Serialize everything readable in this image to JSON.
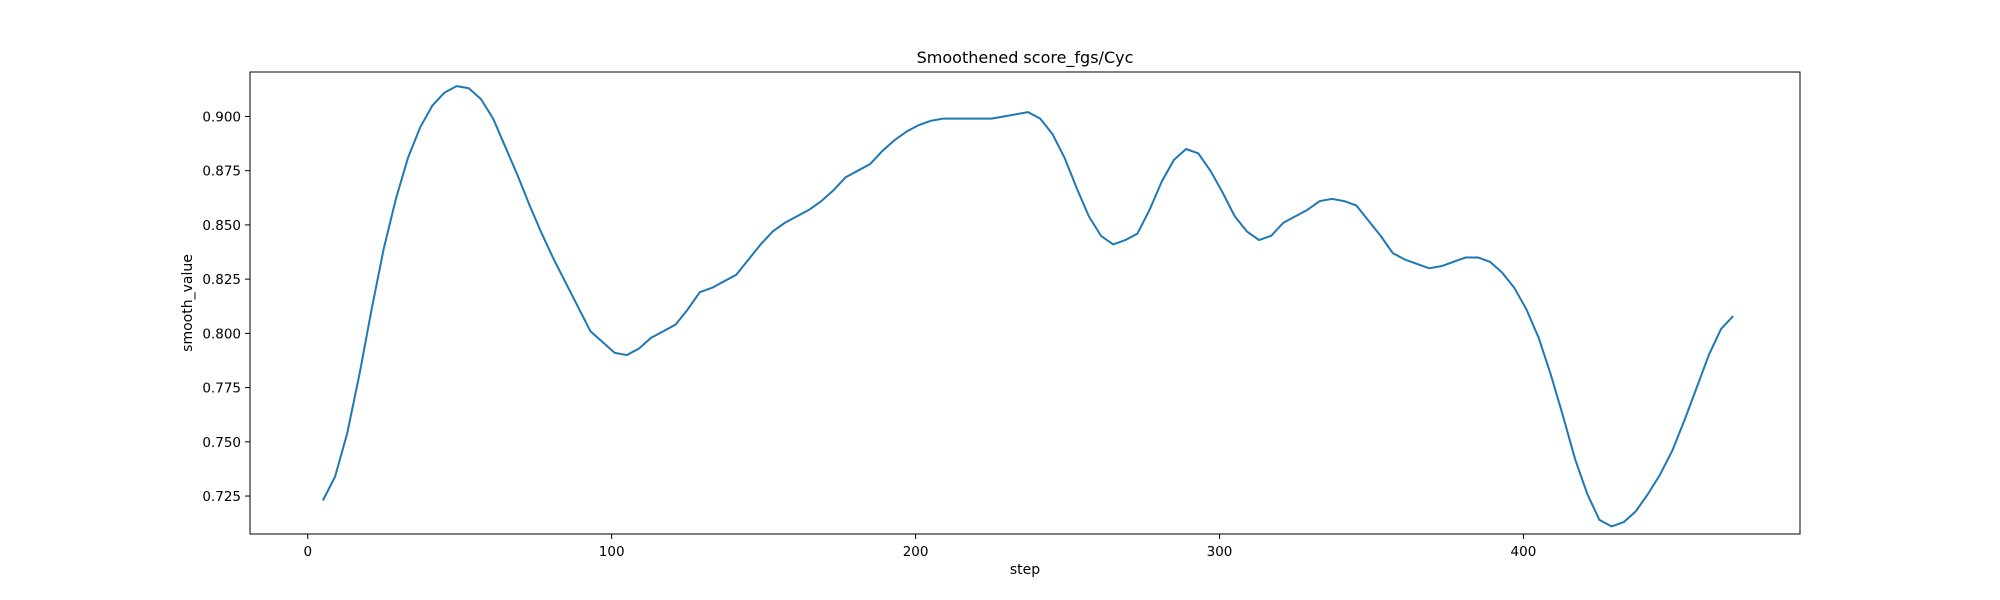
{
  "chart_data": {
    "type": "line",
    "title": "Smoothened score_fgs/Cyc",
    "xlabel": "step",
    "ylabel": "smooth_value",
    "xlim": [
      -19,
      491
    ],
    "ylim": [
      0.7075,
      0.9205
    ],
    "xticks": [
      0,
      100,
      200,
      300,
      400
    ],
    "yticks": [
      0.725,
      0.75,
      0.775,
      0.8,
      0.825,
      0.85,
      0.875,
      0.9
    ],
    "ytick_labels": [
      "0.725",
      "0.750",
      "0.775",
      "0.800",
      "0.825",
      "0.850",
      "0.875",
      "0.900"
    ],
    "grid": false,
    "legend": "none",
    "series": [
      {
        "color": "#1f77b4",
        "x": [
          5,
          9,
          13,
          17,
          21,
          25,
          29,
          33,
          37,
          41,
          45,
          49,
          53,
          57,
          61,
          65,
          69,
          73,
          77,
          81,
          85,
          89,
          93,
          97,
          101,
          105,
          109,
          113,
          117,
          121,
          125,
          129,
          133,
          137,
          141,
          145,
          149,
          153,
          157,
          161,
          165,
          169,
          173,
          177,
          181,
          185,
          189,
          193,
          197,
          201,
          205,
          209,
          213,
          217,
          221,
          225,
          229,
          233,
          237,
          241,
          245,
          249,
          253,
          257,
          261,
          265,
          269,
          273,
          277,
          281,
          285,
          289,
          293,
          297,
          301,
          305,
          309,
          313,
          317,
          321,
          325,
          329,
          333,
          337,
          341,
          345,
          349,
          353,
          357,
          361,
          365,
          369,
          373,
          377,
          381,
          385,
          389,
          393,
          397,
          401,
          405,
          409,
          413,
          417,
          421,
          425,
          429,
          433,
          437,
          441,
          445,
          449,
          453,
          457,
          461,
          465,
          469
        ],
        "y": [
          0.723,
          0.734,
          0.754,
          0.781,
          0.811,
          0.839,
          0.862,
          0.881,
          0.895,
          0.905,
          0.911,
          0.914,
          0.913,
          0.908,
          0.899,
          0.886,
          0.873,
          0.859,
          0.846,
          0.834,
          0.823,
          0.812,
          0.801,
          0.796,
          0.791,
          0.79,
          0.793,
          0.798,
          0.801,
          0.804,
          0.811,
          0.819,
          0.821,
          0.824,
          0.827,
          0.834,
          0.841,
          0.847,
          0.851,
          0.854,
          0.857,
          0.861,
          0.866,
          0.872,
          0.875,
          0.878,
          0.884,
          0.889,
          0.893,
          0.896,
          0.898,
          0.899,
          0.899,
          0.899,
          0.899,
          0.899,
          0.9,
          0.901,
          0.902,
          0.899,
          0.892,
          0.881,
          0.867,
          0.854,
          0.845,
          0.841,
          0.843,
          0.846,
          0.857,
          0.87,
          0.88,
          0.885,
          0.883,
          0.875,
          0.865,
          0.854,
          0.847,
          0.843,
          0.845,
          0.851,
          0.854,
          0.857,
          0.861,
          0.862,
          0.861,
          0.859,
          0.852,
          0.845,
          0.837,
          0.834,
          0.832,
          0.83,
          0.831,
          0.833,
          0.835,
          0.835,
          0.833,
          0.828,
          0.821,
          0.811,
          0.798,
          0.781,
          0.762,
          0.742,
          0.726,
          0.714,
          0.711,
          0.713,
          0.718,
          0.726,
          0.735,
          0.746,
          0.76,
          0.775,
          0.79,
          0.802,
          0.808
        ]
      }
    ]
  }
}
